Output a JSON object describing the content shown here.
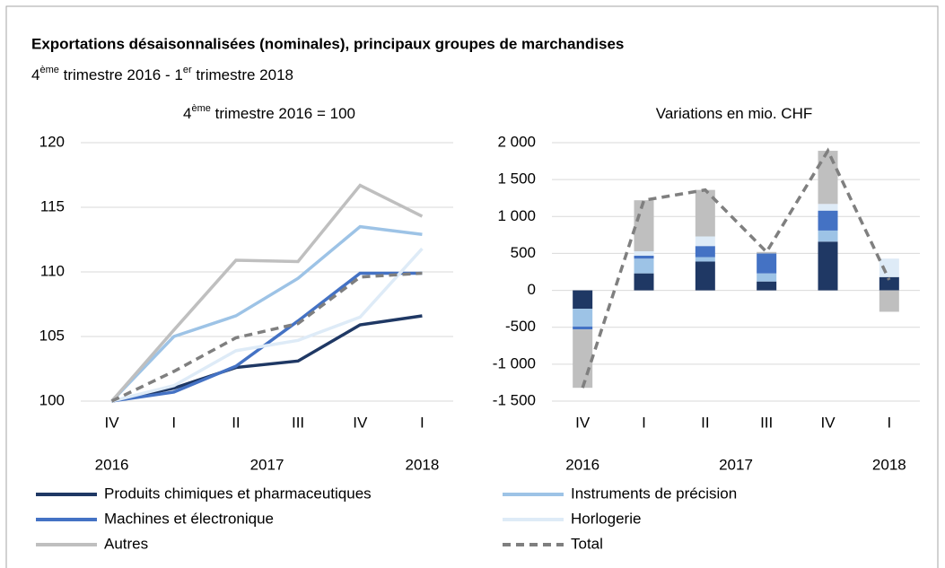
{
  "title": "Exportations désaisonnalisées (nominales), principaux groupes de marchandises",
  "subtitle": [
    "4",
    "ème",
    " trimestre 2016 - 1",
    "er",
    " trimestre 2018"
  ],
  "chart_data": [
    {
      "type": "line",
      "subtitle": [
        "4",
        "ème",
        " trimestre 2016  = 100"
      ],
      "categories": [
        "IV",
        "I",
        "II",
        "III",
        "IV",
        "I"
      ],
      "category_groups": [
        {
          "name": "2016",
          "span": 1
        },
        {
          "name": "2017",
          "span": 4
        },
        {
          "name": "2018",
          "span": 1
        }
      ],
      "ylim": [
        100,
        120
      ],
      "yticks": [
        100,
        105,
        110,
        115,
        120
      ],
      "grid": true,
      "series": [
        {
          "name": "Produits chimiques et pharmaceutiques",
          "color": "#1f3864",
          "values": [
            100,
            101,
            102.6,
            103.1,
            105.9,
            106.6
          ]
        },
        {
          "name": "Instruments de précision",
          "color": "#9dc3e6",
          "values": [
            100,
            105,
            106.6,
            109.5,
            113.5,
            112.9
          ]
        },
        {
          "name": "Machines et électronique",
          "color": "#4472c4",
          "values": [
            100,
            100.7,
            102.7,
            106.2,
            109.9,
            109.9
          ]
        },
        {
          "name": "Horlogerie",
          "color": "#deebf7",
          "values": [
            100,
            101.2,
            103.9,
            104.7,
            106.5,
            111.8
          ]
        },
        {
          "name": "Autres",
          "color": "#bfbfbf",
          "values": [
            100,
            105.5,
            110.9,
            110.8,
            116.7,
            114.3
          ]
        },
        {
          "name": "Total",
          "color": "#7f7f7f",
          "dash": true,
          "values": [
            100,
            102.3,
            104.9,
            106,
            109.6,
            109.9
          ]
        }
      ]
    },
    {
      "type": "stacked_bar",
      "subtitle": [
        "Variations en mio. CHF"
      ],
      "categories": [
        "IV",
        "I",
        "II",
        "III",
        "IV",
        "I"
      ],
      "category_groups": [
        {
          "name": "2016",
          "span": 1
        },
        {
          "name": "2017",
          "span": 4
        },
        {
          "name": "2018",
          "span": 1
        }
      ],
      "ylim": [
        -1500,
        2000
      ],
      "yticks": [
        {
          "value": -1500,
          "label": "-1 500"
        },
        {
          "value": -1000,
          "label": "-1 000"
        },
        -500,
        0,
        500,
        {
          "value": 1000,
          "label": "1 000"
        },
        {
          "value": 1500,
          "label": "1 500"
        },
        {
          "value": 2000,
          "label": "2 000"
        }
      ],
      "grid": true,
      "series": [
        {
          "values": [
            -250,
            230,
            390,
            120,
            660,
            180
          ]
        },
        {
          "values": [
            -240,
            200,
            60,
            110,
            150,
            0
          ]
        },
        {
          "values": [
            -40,
            40,
            150,
            270,
            270,
            0
          ]
        },
        {
          "values": [
            0,
            60,
            130,
            0,
            90,
            250
          ]
        },
        {
          "values": [
            -790,
            690,
            630,
            20,
            720,
            -290
          ]
        },
        {
          "type": "line",
          "values": [
            -1320,
            1220,
            1360,
            520,
            1890,
            140
          ]
        }
      ]
    }
  ]
}
